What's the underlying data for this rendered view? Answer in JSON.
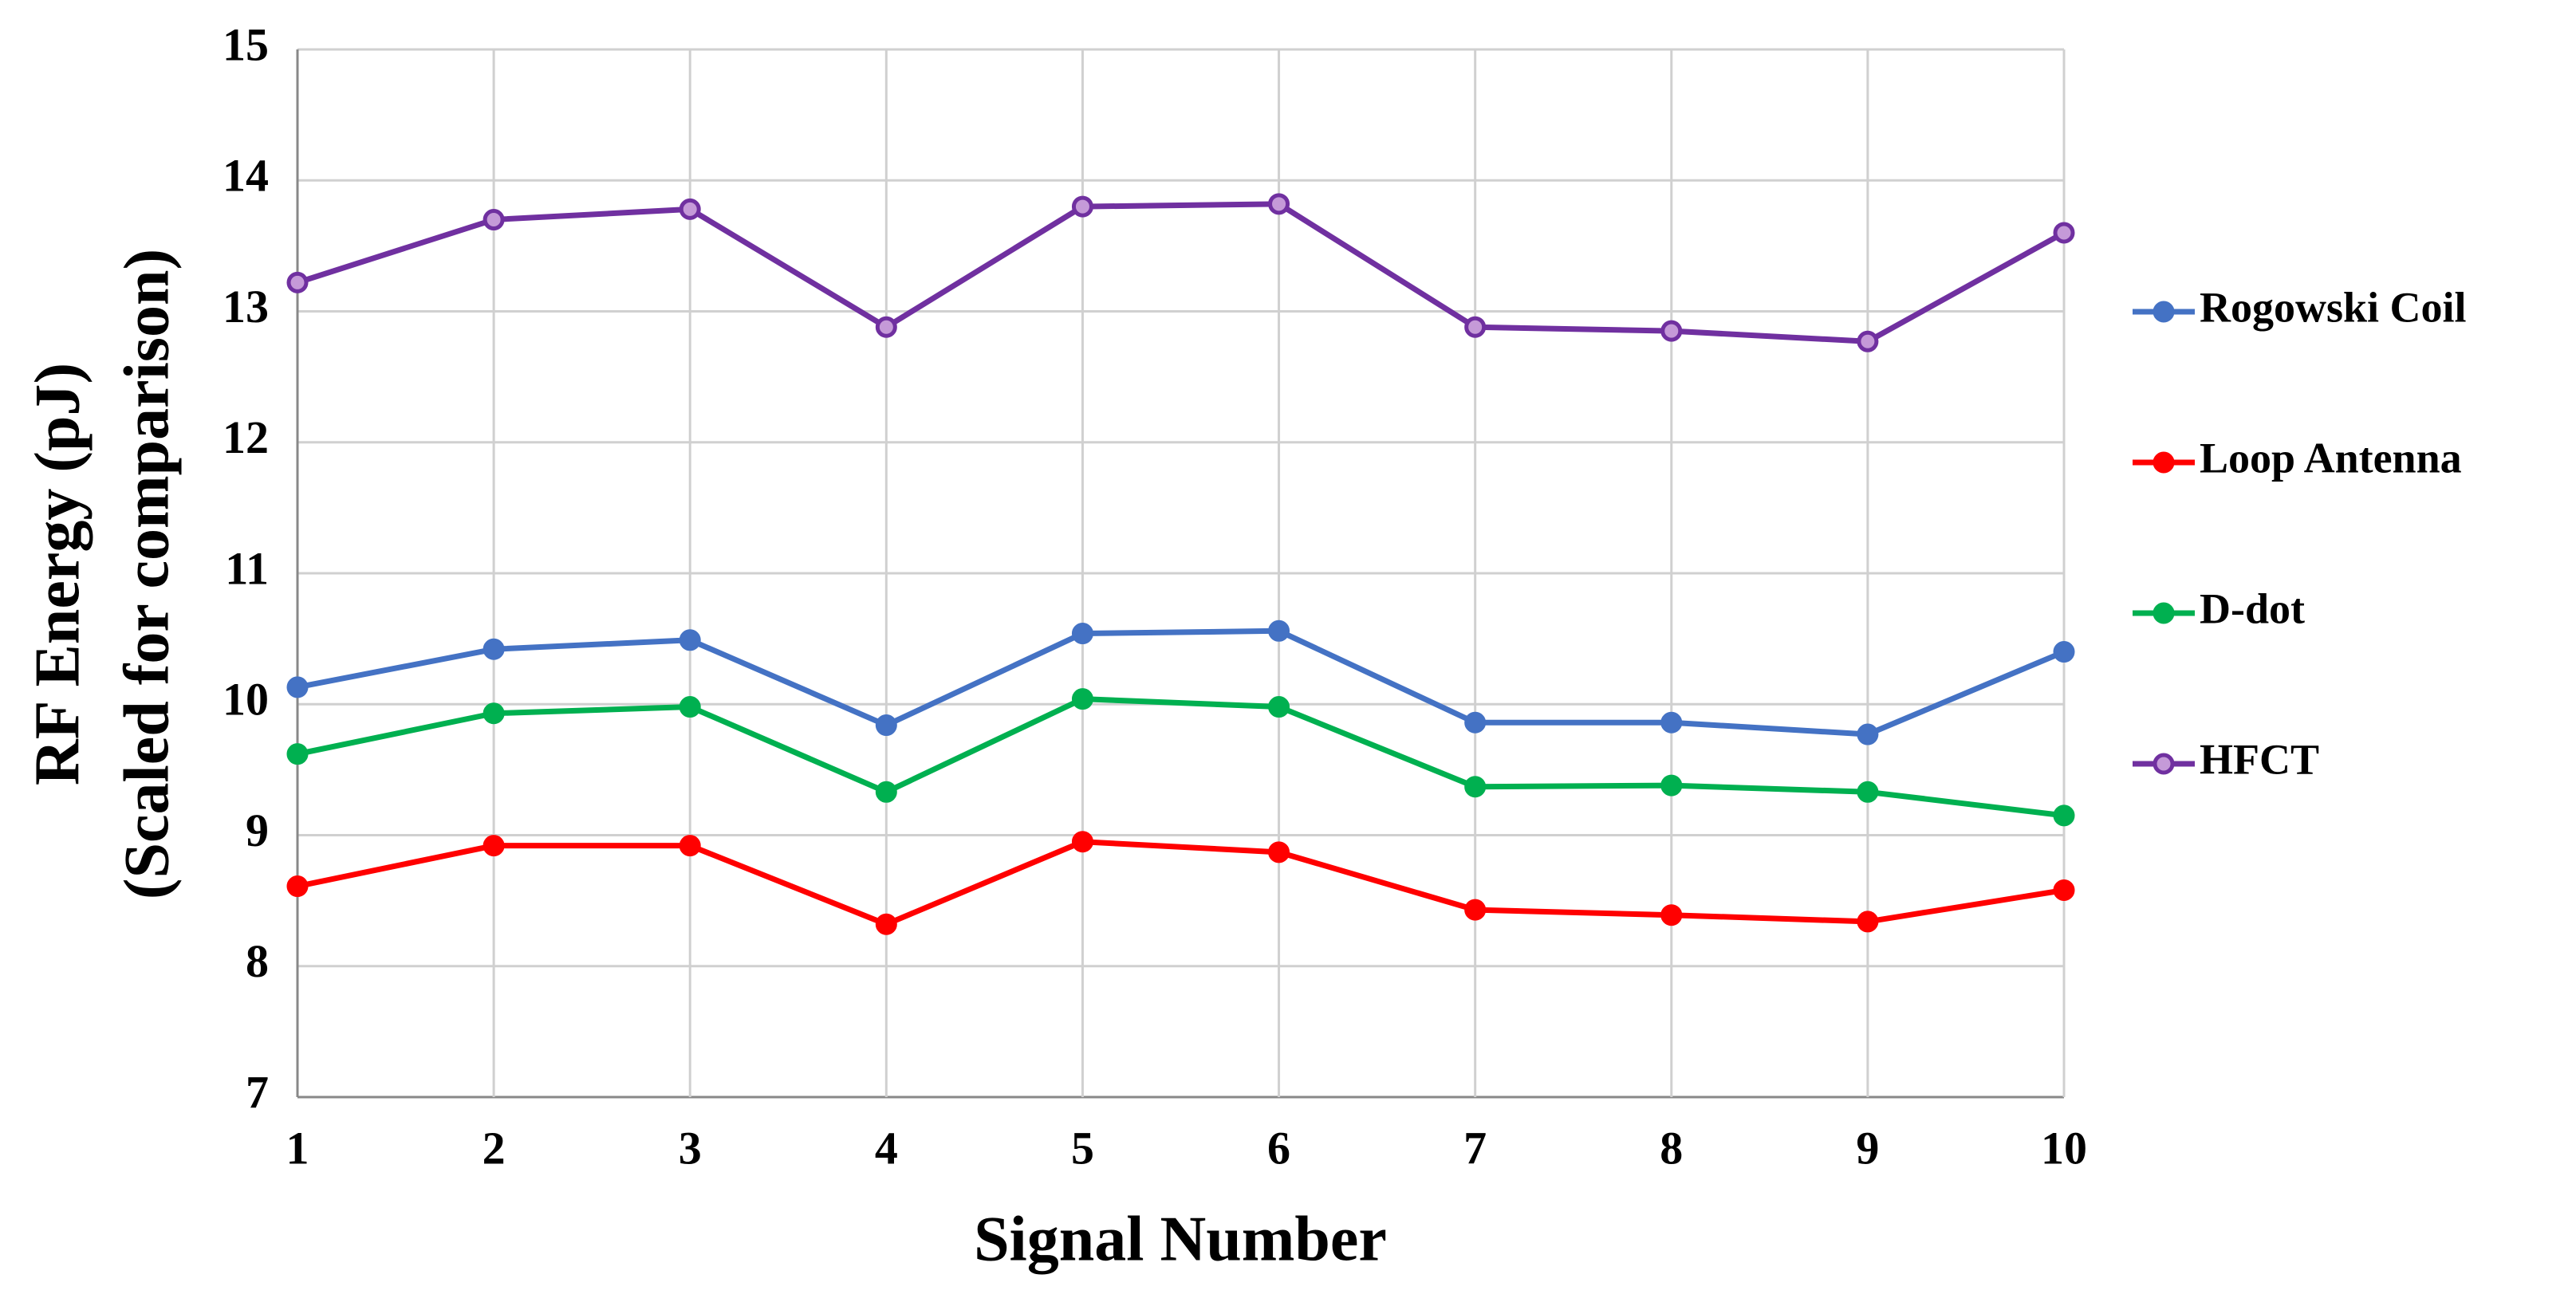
{
  "chart_data": {
    "type": "line",
    "x_label": "Signal Number",
    "y_label": [
      "RF Energy (pJ)",
      "(Scaled for comparison)"
    ],
    "x": [
      1,
      2,
      3,
      4,
      5,
      6,
      7,
      8,
      9,
      10
    ],
    "xlim": [
      1,
      10
    ],
    "xticks": [
      1,
      2,
      3,
      4,
      5,
      6,
      7,
      8,
      9,
      10
    ],
    "ylim": [
      7,
      15
    ],
    "yticks": [
      7,
      8,
      9,
      10,
      11,
      12,
      13,
      14,
      15
    ],
    "grid": true,
    "legend": "right",
    "series": [
      {
        "name": "Rogowski Coil",
        "color": "#4472c4",
        "values": [
          10.13,
          10.42,
          10.49,
          9.84,
          10.54,
          10.56,
          9.86,
          9.86,
          9.77,
          10.4
        ]
      },
      {
        "name": "Loop Antenna",
        "color": "#ff0000",
        "values": [
          8.61,
          8.92,
          8.92,
          8.32,
          8.95,
          8.87,
          8.43,
          8.39,
          8.34,
          8.58
        ]
      },
      {
        "name": "D-dot",
        "color": "#00b050",
        "values": [
          9.62,
          9.93,
          9.98,
          9.33,
          10.04,
          9.98,
          9.37,
          9.38,
          9.33,
          9.15
        ]
      },
      {
        "name": "HFCT",
        "color": "#7030a0",
        "values": [
          13.22,
          13.7,
          13.78,
          12.88,
          13.8,
          13.82,
          12.88,
          12.85,
          12.77,
          13.6
        ]
      }
    ]
  }
}
